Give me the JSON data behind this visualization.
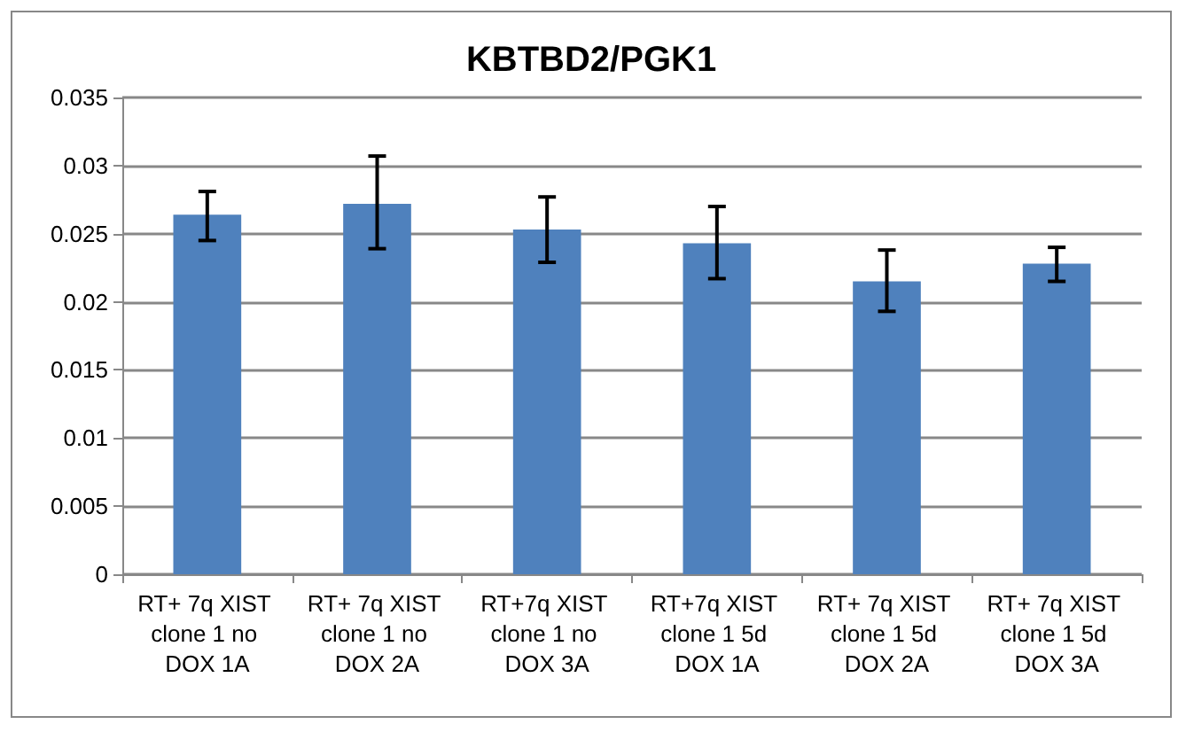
{
  "chart_data": {
    "type": "bar",
    "title": "KBTBD2/PGK1",
    "categories": [
      "RT+ 7q XIST clone 1 no DOX 1A",
      "RT+ 7q XIST clone 1 no DOX 2A",
      "RT+7q XIST clone 1 no DOX 3A",
      "RT+7q XIST clone 1 5d DOX 1A",
      "RT+ 7q XIST clone 1 5d DOX 2A",
      "RT+ 7q XIST clone 1 5d DOX 3A"
    ],
    "values": [
      0.0264,
      0.0272,
      0.0253,
      0.0243,
      0.0215,
      0.0228
    ],
    "errors": [
      [
        0.0245,
        0.0281
      ],
      [
        0.0239,
        0.0307
      ],
      [
        0.0229,
        0.0277
      ],
      [
        0.0217,
        0.027
      ],
      [
        0.0193,
        0.0238
      ],
      [
        0.0215,
        0.024
      ]
    ],
    "color": "#4f81bd",
    "ylim": [
      0,
      0.035
    ],
    "yticks": [
      0,
      0.005,
      0.01,
      0.015,
      0.02,
      0.025,
      0.03,
      0.035
    ],
    "grid": "y"
  }
}
